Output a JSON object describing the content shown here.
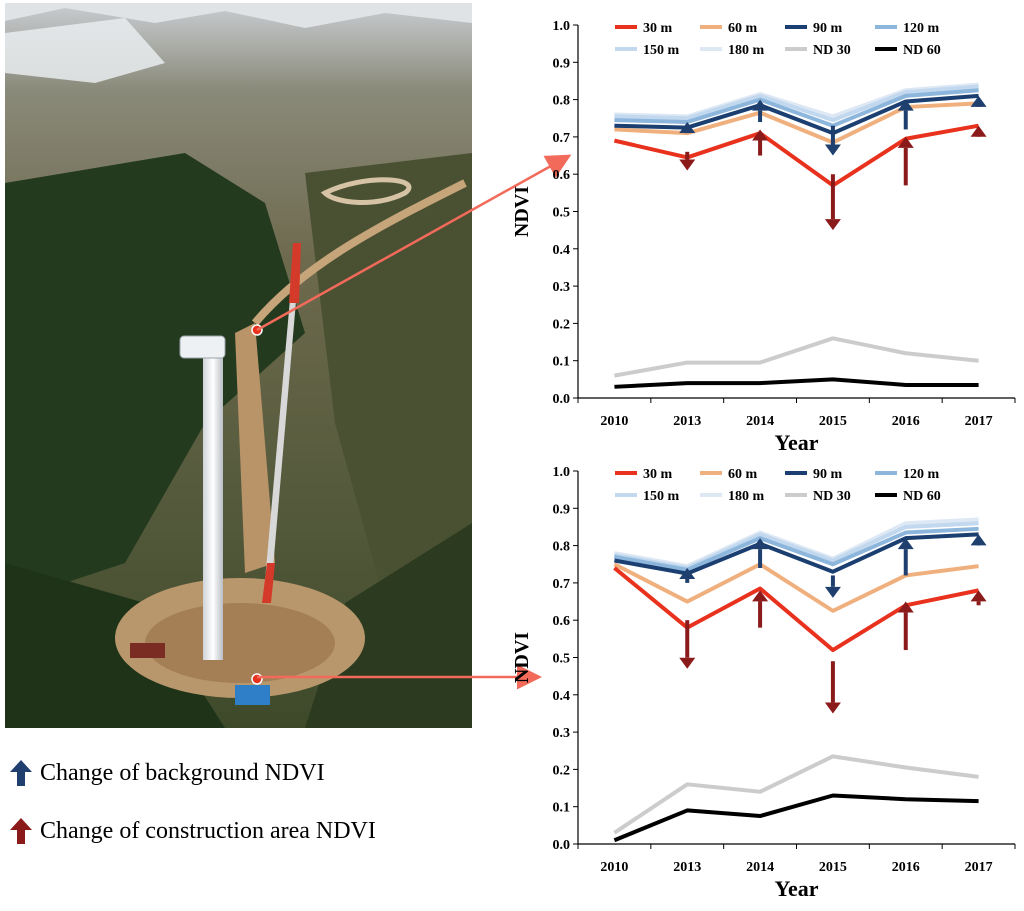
{
  "figure_legend": {
    "background": {
      "label": "Change of background NDVI",
      "color": "#1f3f6e"
    },
    "construction": {
      "label": "Change of construction area NDVI",
      "color": "#8b1a1a"
    }
  },
  "photo": {
    "icon": "wind-turbine-aerial-photo"
  },
  "chart_data": [
    {
      "type": "line",
      "categories": [
        "2010",
        "2013",
        "2014",
        "2015",
        "2016",
        "2017"
      ],
      "xlabel": "Year",
      "ylabel": "NDVI",
      "ylim": [
        0,
        1
      ],
      "yticks": [
        "0.0",
        "0.1",
        "0.2",
        "0.3",
        "0.4",
        "0.5",
        "0.6",
        "0.7",
        "0.8",
        "0.9",
        "1.0"
      ],
      "grid": false,
      "legend_position": "top",
      "series": [
        {
          "name": "30 m",
          "color": "#e8321e",
          "values": [
            0.69,
            0.645,
            0.71,
            0.57,
            0.695,
            0.73
          ]
        },
        {
          "name": "60 m",
          "color": "#f0b07e",
          "values": [
            0.72,
            0.71,
            0.765,
            0.685,
            0.78,
            0.79
          ]
        },
        {
          "name": "90 m",
          "color": "#1a3f70",
          "values": [
            0.73,
            0.725,
            0.785,
            0.71,
            0.795,
            0.81
          ]
        },
        {
          "name": "120 m",
          "color": "#8db6dc",
          "values": [
            0.745,
            0.74,
            0.8,
            0.73,
            0.81,
            0.825
          ]
        },
        {
          "name": "150 m",
          "color": "#c2d8ee",
          "values": [
            0.755,
            0.75,
            0.81,
            0.745,
            0.82,
            0.835
          ]
        },
        {
          "name": "180 m",
          "color": "#dde8f4",
          "values": [
            0.76,
            0.755,
            0.815,
            0.755,
            0.825,
            0.84
          ]
        },
        {
          "name": "ND 30",
          "color": "#cccccc",
          "values": [
            0.06,
            0.095,
            0.095,
            0.16,
            0.12,
            0.1
          ]
        },
        {
          "name": "ND 60",
          "color": "#000000",
          "values": [
            0.03,
            0.04,
            0.04,
            0.05,
            0.035,
            0.035
          ]
        }
      ],
      "change_arrows": [
        {
          "kind": "background",
          "x": "2013",
          "from": 0.71,
          "to": 0.74
        },
        {
          "kind": "construction",
          "x": "2013",
          "from": 0.66,
          "to": 0.61
        },
        {
          "kind": "background",
          "x": "2014",
          "from": 0.74,
          "to": 0.8
        },
        {
          "kind": "construction",
          "x": "2014",
          "from": 0.65,
          "to": 0.72
        },
        {
          "kind": "background",
          "x": "2015",
          "from": 0.73,
          "to": 0.65
        },
        {
          "kind": "construction",
          "x": "2015",
          "from": 0.6,
          "to": 0.45
        },
        {
          "kind": "background",
          "x": "2016",
          "from": 0.72,
          "to": 0.8
        },
        {
          "kind": "construction",
          "x": "2016",
          "from": 0.57,
          "to": 0.7
        },
        {
          "kind": "background",
          "x": "2017",
          "from": 0.79,
          "to": 0.81
        },
        {
          "kind": "construction",
          "x": "2017",
          "from": 0.7,
          "to": 0.73
        }
      ]
    },
    {
      "type": "line",
      "categories": [
        "2010",
        "2013",
        "2014",
        "2015",
        "2016",
        "2017"
      ],
      "xlabel": "Year",
      "ylabel": "NDVI",
      "ylim": [
        0,
        1
      ],
      "yticks": [
        "0.0",
        "0.1",
        "0.2",
        "0.3",
        "0.4",
        "0.5",
        "0.6",
        "0.7",
        "0.8",
        "0.9",
        "1.0"
      ],
      "grid": false,
      "legend_position": "top",
      "series": [
        {
          "name": "30 m",
          "color": "#e8321e",
          "values": [
            0.74,
            0.58,
            0.685,
            0.52,
            0.64,
            0.68
          ]
        },
        {
          "name": "60 m",
          "color": "#f0b07e",
          "values": [
            0.75,
            0.65,
            0.75,
            0.625,
            0.72,
            0.745
          ]
        },
        {
          "name": "90 m",
          "color": "#1a3f70",
          "values": [
            0.76,
            0.725,
            0.805,
            0.73,
            0.82,
            0.83
          ]
        },
        {
          "name": "120 m",
          "color": "#8db6dc",
          "values": [
            0.77,
            0.735,
            0.82,
            0.75,
            0.835,
            0.845
          ]
        },
        {
          "name": "150 m",
          "color": "#c2d8ee",
          "values": [
            0.775,
            0.74,
            0.83,
            0.76,
            0.85,
            0.86
          ]
        },
        {
          "name": "180 m",
          "color": "#dde8f4",
          "values": [
            0.78,
            0.745,
            0.835,
            0.765,
            0.86,
            0.87
          ]
        },
        {
          "name": "ND 30",
          "color": "#cccccc",
          "values": [
            0.03,
            0.16,
            0.14,
            0.235,
            0.205,
            0.18
          ]
        },
        {
          "name": "ND 60",
          "color": "#000000",
          "values": [
            0.01,
            0.09,
            0.075,
            0.13,
            0.12,
            0.115
          ]
        }
      ],
      "change_arrows": [
        {
          "kind": "background",
          "x": "2013",
          "from": 0.7,
          "to": 0.74
        },
        {
          "kind": "construction",
          "x": "2013",
          "from": 0.6,
          "to": 0.47
        },
        {
          "kind": "background",
          "x": "2014",
          "from": 0.74,
          "to": 0.82
        },
        {
          "kind": "construction",
          "x": "2014",
          "from": 0.58,
          "to": 0.68
        },
        {
          "kind": "background",
          "x": "2015",
          "from": 0.72,
          "to": 0.66
        },
        {
          "kind": "construction",
          "x": "2015",
          "from": 0.49,
          "to": 0.35
        },
        {
          "kind": "background",
          "x": "2016",
          "from": 0.72,
          "to": 0.82
        },
        {
          "kind": "construction",
          "x": "2016",
          "from": 0.52,
          "to": 0.65
        },
        {
          "kind": "background",
          "x": "2017",
          "from": 0.8,
          "to": 0.83
        },
        {
          "kind": "construction",
          "x": "2017",
          "from": 0.64,
          "to": 0.68
        }
      ]
    }
  ]
}
